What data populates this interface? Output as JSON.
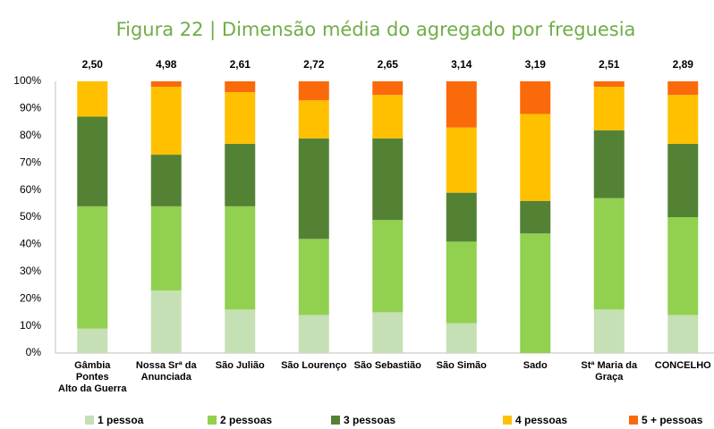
{
  "chart_data": {
    "type": "stacked_bar_100",
    "title": "Figura 22 | Dimensão média do agregado por freguesia",
    "categories": [
      "Gâmbia\nPontes\nAlto da Guerra",
      "Nossa Srª da\nAnunciada",
      "São Julião",
      "São Lourenço",
      "São Sebastião",
      "São Simão",
      "Sado",
      "Stª Maria da\nGraça",
      "CONCELHO"
    ],
    "series": [
      {
        "name": "1 pessoa",
        "color": "#c5e0b4",
        "values": [
          9,
          23,
          16,
          14,
          15,
          11,
          0,
          16,
          14
        ]
      },
      {
        "name": "2 pessoas",
        "color": "#92d050",
        "values": [
          45,
          31,
          38,
          28,
          34,
          30,
          44,
          41,
          36
        ]
      },
      {
        "name": "3 pessoas",
        "color": "#548235",
        "values": [
          33,
          19,
          23,
          37,
          30,
          18,
          12,
          25,
          27
        ]
      },
      {
        "name": "4 pessoas",
        "color": "#ffc000",
        "values": [
          13,
          25,
          19,
          14,
          16,
          24,
          32,
          16,
          18
        ]
      },
      {
        "name": "5 + pessoas",
        "color": "#fa6a0a",
        "values": [
          0,
          2,
          4,
          7,
          5,
          17,
          12,
          2,
          5
        ]
      }
    ],
    "averages": {
      "values": [
        2.5,
        4.98,
        2.61,
        2.72,
        2.65,
        3.14,
        3.19,
        2.51,
        2.89
      ],
      "value_labels": [
        "2,50",
        "4,98",
        "2,61",
        "2,72",
        "2,65",
        "3,14",
        "3,19",
        "2,51",
        "2,89"
      ]
    },
    "ylim": [
      0,
      100
    ],
    "yticks": [
      {
        "value": 0,
        "label": "0%"
      },
      {
        "value": 10,
        "label": "10%"
      },
      {
        "value": 20,
        "label": "20%"
      },
      {
        "value": 30,
        "label": "30%"
      },
      {
        "value": 40,
        "label": "40%"
      },
      {
        "value": 50,
        "label": "50%"
      },
      {
        "value": 60,
        "label": "60%"
      },
      {
        "value": 70,
        "label": "70%"
      },
      {
        "value": 80,
        "label": "80%"
      },
      {
        "value": 90,
        "label": "90%"
      },
      {
        "value": 100,
        "label": "100%"
      }
    ],
    "grid": false,
    "legend": "bottom"
  }
}
